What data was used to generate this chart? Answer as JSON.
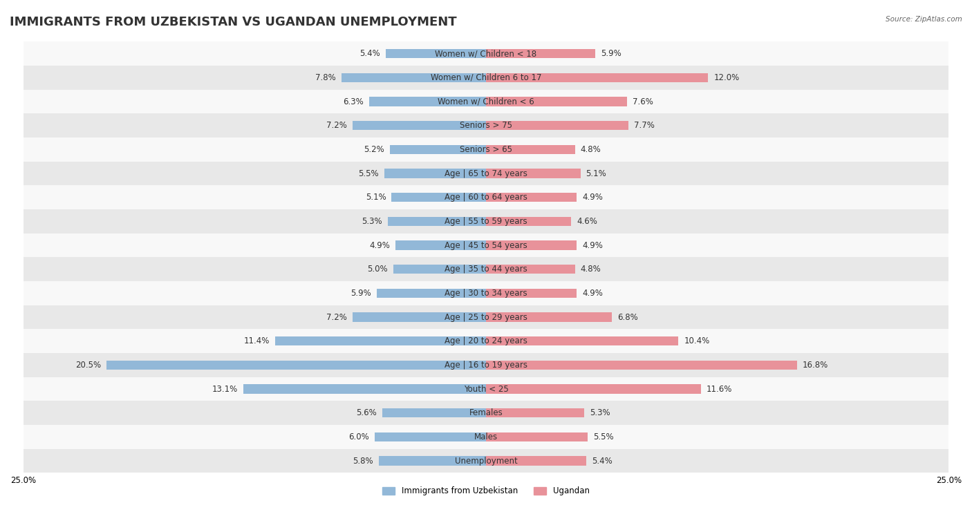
{
  "title": "IMMIGRANTS FROM UZBEKISTAN VS UGANDAN UNEMPLOYMENT",
  "source": "Source: ZipAtlas.com",
  "categories": [
    "Unemployment",
    "Males",
    "Females",
    "Youth < 25",
    "Age | 16 to 19 years",
    "Age | 20 to 24 years",
    "Age | 25 to 29 years",
    "Age | 30 to 34 years",
    "Age | 35 to 44 years",
    "Age | 45 to 54 years",
    "Age | 55 to 59 years",
    "Age | 60 to 64 years",
    "Age | 65 to 74 years",
    "Seniors > 65",
    "Seniors > 75",
    "Women w/ Children < 6",
    "Women w/ Children 6 to 17",
    "Women w/ Children < 18"
  ],
  "uzbekistan_values": [
    5.8,
    6.0,
    5.6,
    13.1,
    20.5,
    11.4,
    7.2,
    5.9,
    5.0,
    4.9,
    5.3,
    5.1,
    5.5,
    5.2,
    7.2,
    6.3,
    7.8,
    5.4
  ],
  "ugandan_values": [
    5.4,
    5.5,
    5.3,
    11.6,
    16.8,
    10.4,
    6.8,
    4.9,
    4.8,
    4.9,
    4.6,
    4.9,
    5.1,
    4.8,
    7.7,
    7.6,
    12.0,
    5.9
  ],
  "uzbekistan_color": "#92b8d8",
  "ugandan_color": "#e8929a",
  "xlim": 25.0,
  "bar_height": 0.38,
  "background_color": "#f0f0f0",
  "row_colors": [
    "#e8e8e8",
    "#f8f8f8"
  ],
  "title_fontsize": 13,
  "label_fontsize": 8.5,
  "value_fontsize": 8.5,
  "legend_label_uzbekistan": "Immigrants from Uzbekistan",
  "legend_label_ugandan": "Ugandan"
}
